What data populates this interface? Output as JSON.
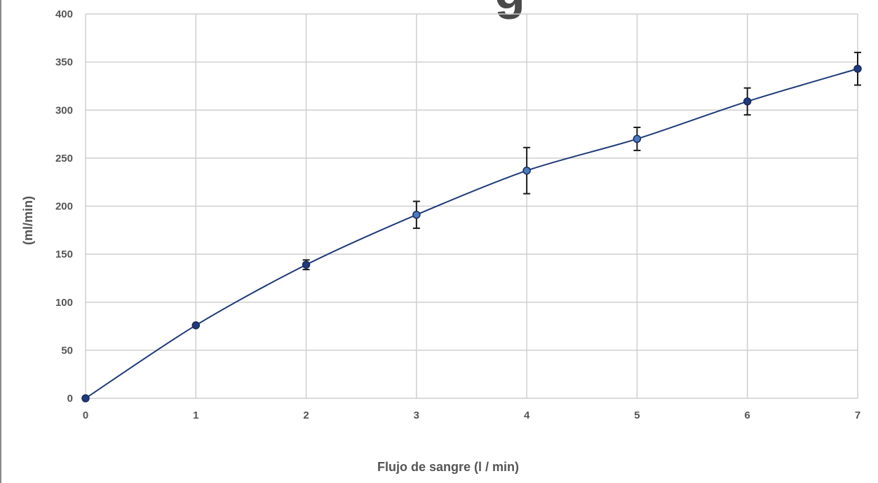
{
  "chart_data": {
    "type": "line",
    "title": "",
    "title_fragment": "g",
    "xlabel": "Flujo de sangre (l / min)",
    "ylabel": "(ml/min)",
    "xlim": [
      0,
      7
    ],
    "ylim": [
      0,
      400
    ],
    "xticks": [
      "0",
      "1",
      "2",
      "3",
      "4",
      "5",
      "6",
      "7"
    ],
    "yticks": [
      "0",
      "50",
      "100",
      "150",
      "200",
      "250",
      "300",
      "350",
      "400"
    ],
    "grid": true,
    "legend": "none",
    "series": [
      {
        "x": [
          0,
          1,
          2,
          3,
          4,
          5,
          6,
          7
        ],
        "y": [
          0,
          76,
          139,
          191,
          237,
          270,
          309,
          343
        ],
        "error": [
          0,
          0,
          5,
          14,
          24,
          12,
          14,
          17
        ],
        "color": "#1f3a7a",
        "marker_fills": [
          "#1f3a7a",
          "#1f3a7a",
          "#1f3a7a",
          "#4a7bc0",
          "#4a7bc0",
          "#4a7bc0",
          "#1f3a7a",
          "#1f3a7a"
        ]
      }
    ],
    "colors": {
      "grid": "#cfcfcf",
      "text": "#555555",
      "errorbar": "#1a1a1a"
    }
  }
}
